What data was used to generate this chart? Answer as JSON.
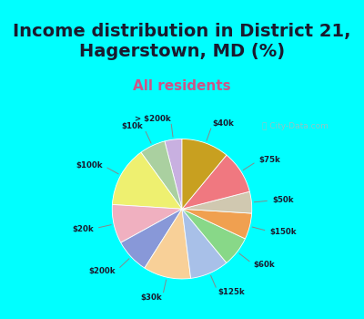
{
  "title": "Income distribution in District 21,\nHagerstown, MD (%)",
  "subtitle": "All residents",
  "watermark": "ⓘ City-Data.com",
  "background_top": "#00FFFF",
  "background_chart_top": "#d0ede8",
  "background_chart_bottom": "#c8e8c8",
  "labels": [
    "> $200k",
    "$10k",
    "$100k",
    "$20k",
    "$200k",
    "$30k",
    "$125k",
    "$60k",
    "$150k",
    "$50k",
    "$75k",
    "$40k"
  ],
  "sizes": [
    4,
    6,
    14,
    9,
    8,
    11,
    9,
    7,
    6,
    5,
    10,
    11
  ],
  "colors": [
    "#c8b0e0",
    "#aad0a0",
    "#eef070",
    "#f0b0c0",
    "#8898d8",
    "#f8d098",
    "#a8c0e8",
    "#88d888",
    "#f0a050",
    "#d0c8b0",
    "#f07880",
    "#c8a020"
  ],
  "startangle": 90,
  "title_fontsize": 14,
  "subtitle_fontsize": 11,
  "title_color": "#1a1a2e",
  "subtitle_color": "#cc5588"
}
